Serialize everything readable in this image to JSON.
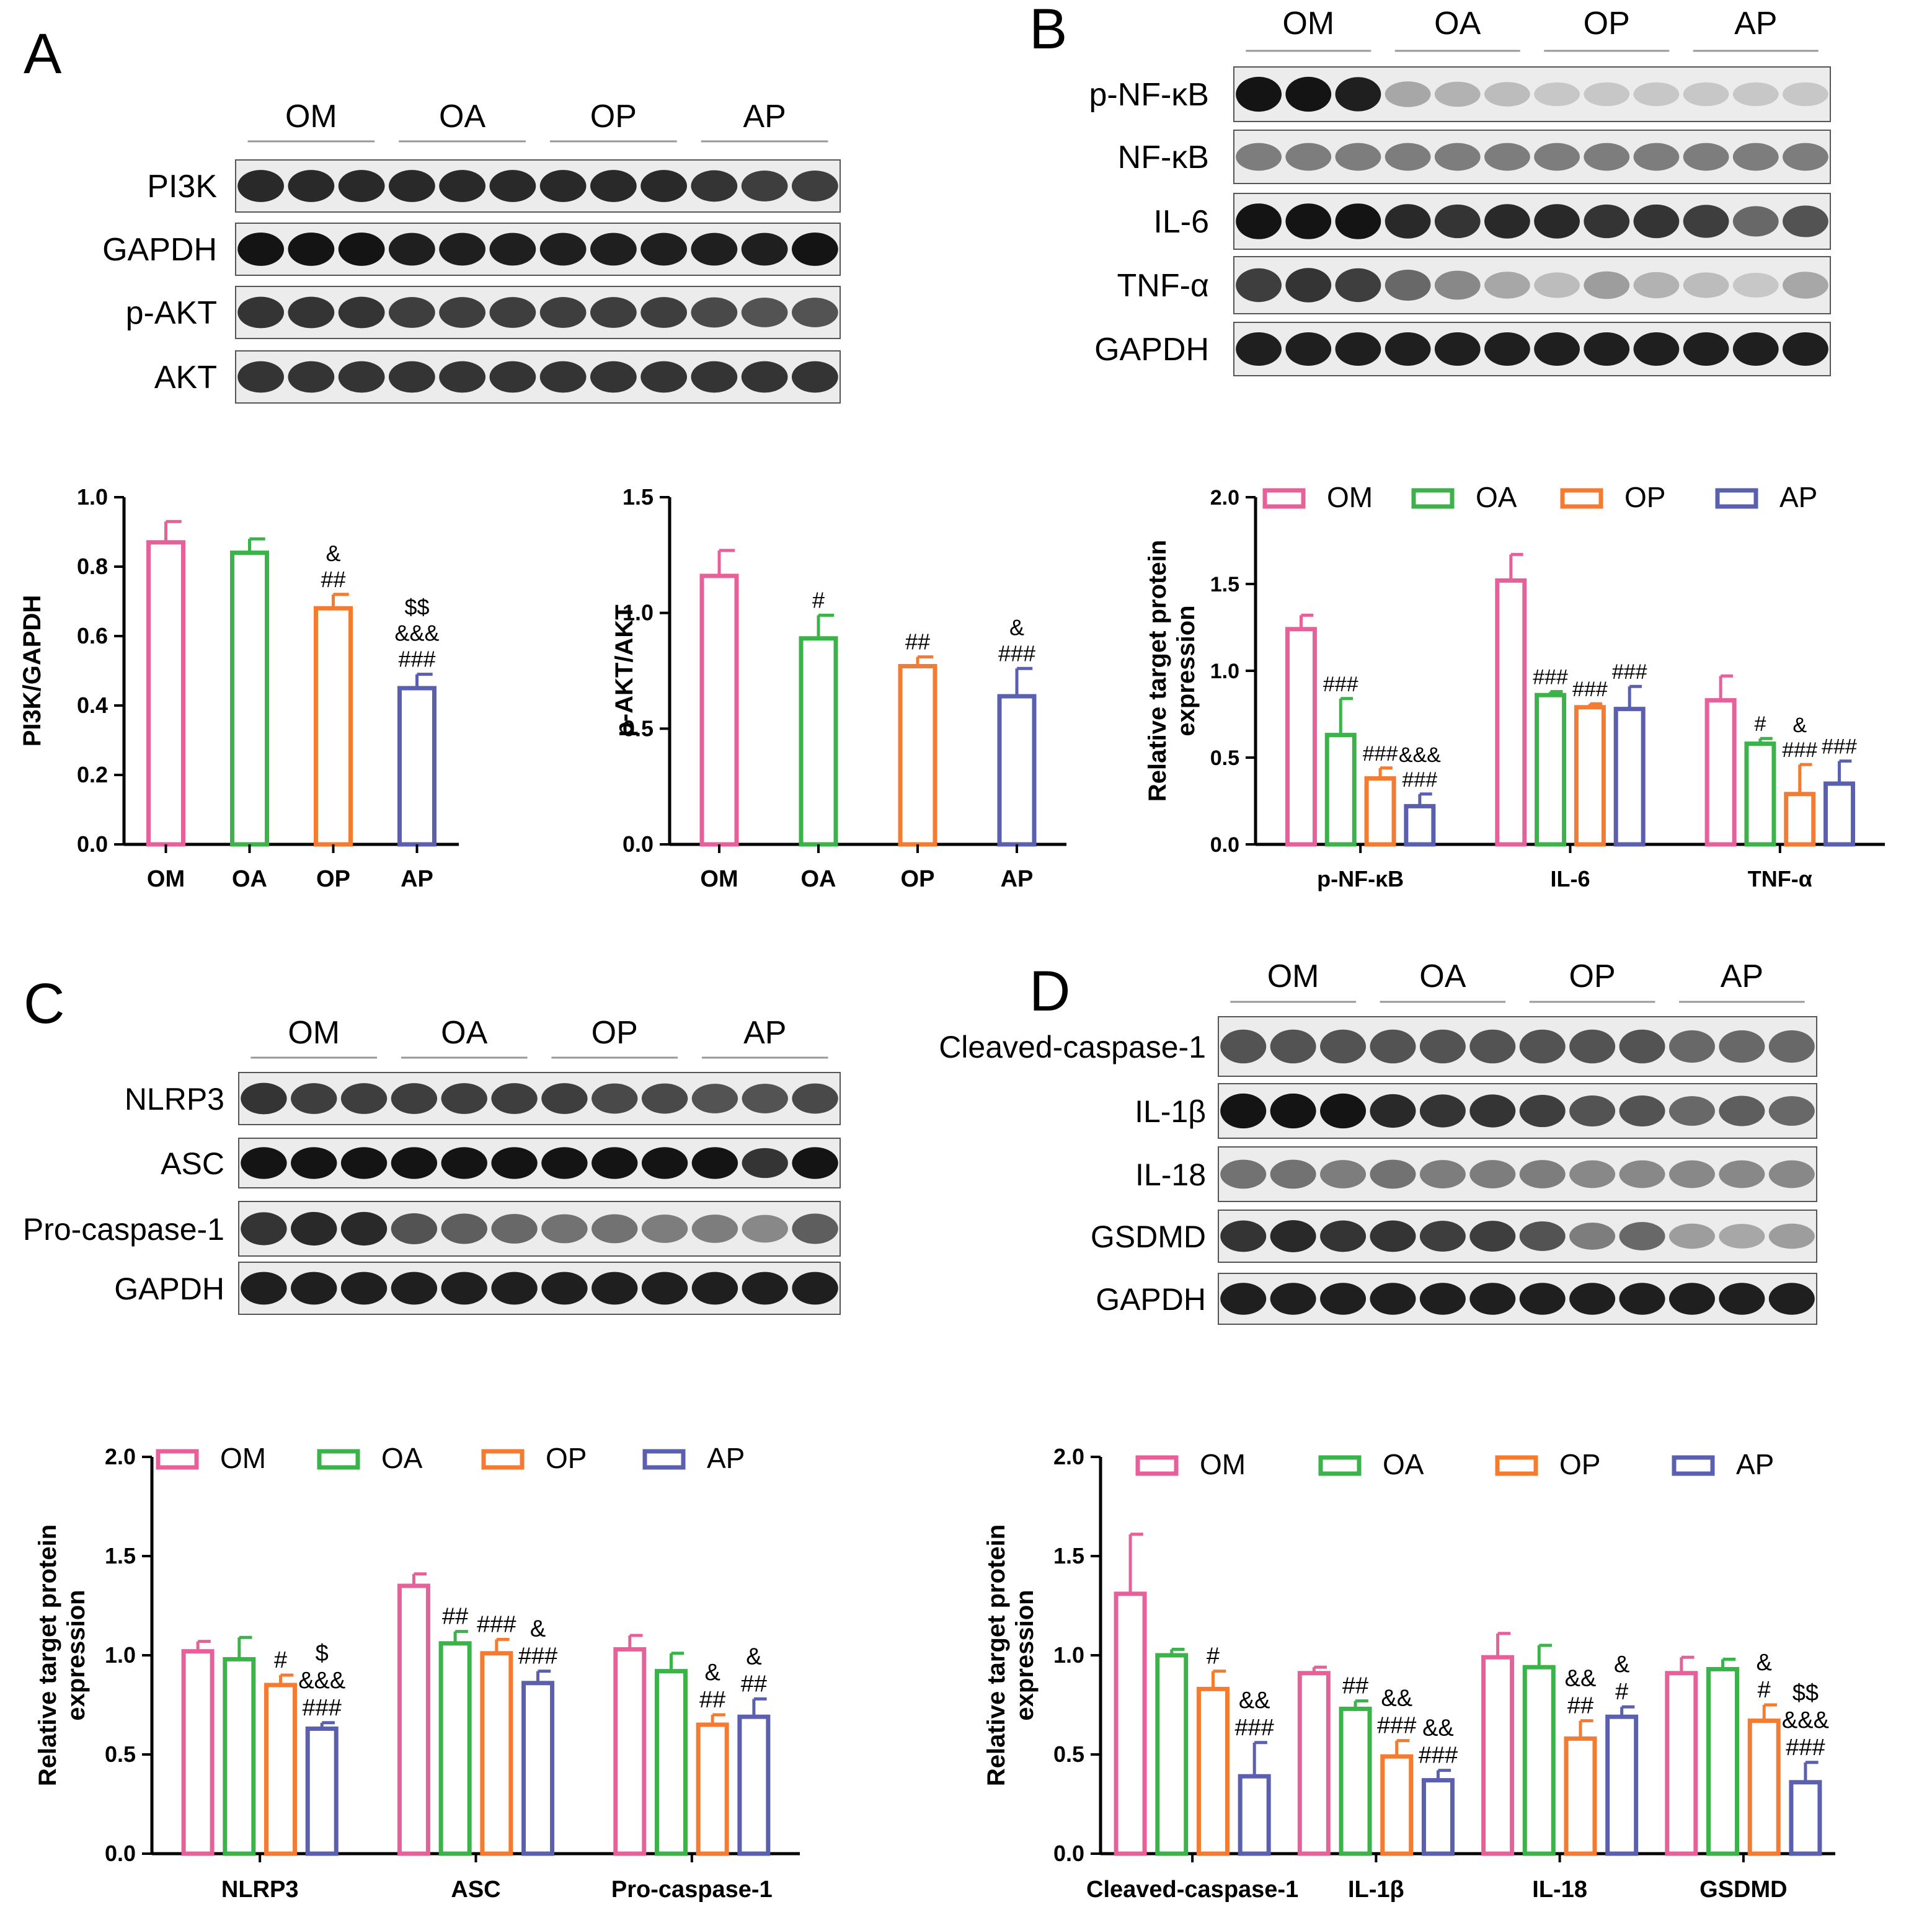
{
  "panel_letters": [
    "A",
    "B",
    "C",
    "D"
  ],
  "blots": [
    {
      "groups": [
        "OM",
        "OA",
        "OP",
        "AP"
      ],
      "rows": [
        "PI3K",
        "GAPDH",
        "p-AKT",
        "AKT"
      ]
    },
    {
      "groups": [
        "OM",
        "OA",
        "OP",
        "AP"
      ],
      "rows": [
        "p-NF-κB",
        "NF-κB",
        "IL-6",
        "TNF-α",
        "GAPDH"
      ]
    },
    {
      "groups": [
        "OM",
        "OA",
        "OP",
        "AP"
      ],
      "rows": [
        "NLRP3",
        "ASC",
        "Pro-caspase-1",
        "GAPDH"
      ]
    },
    {
      "groups": [
        "OM",
        "OA",
        "OP",
        "AP"
      ],
      "rows": [
        "Cleaved-caspase-1",
        "IL-1β",
        "IL-18",
        "GSDMD",
        "GAPDH"
      ]
    }
  ],
  "colors": {
    "OM": "#e8609a",
    "OA": "#3cb34a",
    "OP": "#f47b30",
    "AP": "#5a5fb0",
    "axis": "#000000"
  },
  "chart_data": [
    {
      "type": "bar",
      "categories": [
        "OM",
        "OA",
        "OP",
        "AP"
      ],
      "values": [
        0.87,
        0.84,
        0.68,
        0.45
      ],
      "errors": [
        0.06,
        0.04,
        0.04,
        0.04
      ],
      "annotations": [
        "",
        "",
        "&\n##",
        "$$\n&&&\n###"
      ],
      "ylabel": "PI3K/GAPDH",
      "ylim": [
        0,
        1.0
      ],
      "yticks": [
        "0.0",
        "0.2",
        "0.4",
        "0.6",
        "0.8",
        "1.0"
      ],
      "ytick_values": [
        0,
        0.2,
        0.4,
        0.6,
        0.8,
        1.0
      ]
    },
    {
      "type": "bar",
      "categories": [
        "OM",
        "OA",
        "OP",
        "AP"
      ],
      "values": [
        1.16,
        0.89,
        0.77,
        0.64
      ],
      "errors": [
        0.11,
        0.1,
        0.04,
        0.12
      ],
      "annotations": [
        "",
        "#",
        "##",
        "&\n###"
      ],
      "ylabel": "p-AKT/AKT",
      "ylim": [
        0,
        1.5
      ],
      "yticks": [
        "0.0",
        "0.5",
        "1.0",
        "1.5"
      ],
      "ytick_values": [
        0,
        0.5,
        1.0,
        1.5
      ]
    },
    {
      "type": "bar",
      "categories": [
        "p-NF-κB",
        "IL-6",
        "TNF-α"
      ],
      "series": [
        {
          "name": "OM",
          "values": [
            1.24,
            1.52,
            0.83
          ],
          "errors": [
            0.08,
            0.15,
            0.14
          ],
          "annotations": [
            "",
            "",
            ""
          ]
        },
        {
          "name": "OA",
          "values": [
            0.63,
            0.86,
            0.58
          ],
          "errors": [
            0.21,
            0.02,
            0.03
          ],
          "annotations": [
            "###",
            "###",
            "#"
          ]
        },
        {
          "name": "OP",
          "values": [
            0.38,
            0.79,
            0.29
          ],
          "errors": [
            0.06,
            0.02,
            0.17
          ],
          "annotations": [
            "###",
            "###",
            "&\n###"
          ]
        },
        {
          "name": "AP",
          "values": [
            0.22,
            0.78,
            0.35
          ],
          "errors": [
            0.07,
            0.13,
            0.13
          ],
          "annotations": [
            "&&&\n###",
            "###",
            "###"
          ]
        }
      ],
      "ylabel": "Relative target protein\nexpression",
      "ylim": [
        0,
        2.0
      ],
      "yticks": [
        "0.0",
        "0.5",
        "1.0",
        "1.5",
        "2.0"
      ],
      "ytick_values": [
        0,
        0.5,
        1.0,
        1.5,
        2.0
      ],
      "legend": [
        "OM",
        "OA",
        "OP",
        "AP"
      ]
    },
    {
      "type": "bar",
      "categories": [
        "NLRP3",
        "ASC",
        "Pro-caspase-1"
      ],
      "series": [
        {
          "name": "OM",
          "values": [
            1.02,
            1.35,
            1.03
          ],
          "errors": [
            0.05,
            0.06,
            0.07
          ],
          "annotations": [
            "",
            "",
            ""
          ]
        },
        {
          "name": "OA",
          "values": [
            0.98,
            1.06,
            0.92
          ],
          "errors": [
            0.11,
            0.06,
            0.09
          ],
          "annotations": [
            "",
            "##",
            ""
          ]
        },
        {
          "name": "OP",
          "values": [
            0.85,
            1.01,
            0.65
          ],
          "errors": [
            0.05,
            0.07,
            0.05
          ],
          "annotations": [
            "#",
            "###",
            "&\n##"
          ]
        },
        {
          "name": "AP",
          "values": [
            0.63,
            0.86,
            0.69
          ],
          "errors": [
            0.03,
            0.06,
            0.09
          ],
          "annotations": [
            "$\n&&&\n###",
            "&\n###",
            "&\n##"
          ]
        }
      ],
      "ylabel": "Relative target protein\nexpression",
      "ylim": [
        0,
        2.0
      ],
      "yticks": [
        "0.0",
        "0.5",
        "1.0",
        "1.5",
        "2.0"
      ],
      "ytick_values": [
        0,
        0.5,
        1.0,
        1.5,
        2.0
      ],
      "legend": [
        "OM",
        "OA",
        "OP",
        "AP"
      ]
    },
    {
      "type": "bar",
      "categories": [
        "Cleaved-caspase-1",
        "IL-1β",
        "IL-18",
        "GSDMD"
      ],
      "series": [
        {
          "name": "OM",
          "values": [
            1.31,
            0.91,
            0.99,
            0.91
          ],
          "errors": [
            0.3,
            0.03,
            0.12,
            0.08
          ],
          "annotations": [
            "",
            "",
            "",
            ""
          ]
        },
        {
          "name": "OA",
          "values": [
            1.0,
            0.73,
            0.94,
            0.93
          ],
          "errors": [
            0.03,
            0.04,
            0.11,
            0.05
          ],
          "annotations": [
            "",
            "##",
            "",
            ""
          ]
        },
        {
          "name": "OP",
          "values": [
            0.83,
            0.49,
            0.58,
            0.67
          ],
          "errors": [
            0.09,
            0.08,
            0.09,
            0.08
          ],
          "annotations": [
            "#",
            "&&\n###",
            "&&\n##",
            "&\n#"
          ]
        },
        {
          "name": "AP",
          "values": [
            0.39,
            0.37,
            0.69,
            0.36
          ],
          "errors": [
            0.17,
            0.05,
            0.05,
            0.1
          ],
          "annotations": [
            "&&\n###",
            "&&\n###",
            "&\n#",
            "$$\n&&&\n###"
          ]
        }
      ],
      "ylabel": "Relative target protein\nexpression",
      "ylim": [
        0,
        2.0
      ],
      "yticks": [
        "0.0",
        "0.5",
        "1.0",
        "1.5",
        "2.0"
      ],
      "ytick_values": [
        0,
        0.5,
        1.0,
        1.5,
        2.0
      ],
      "legend": [
        "OM",
        "OA",
        "OP",
        "AP"
      ]
    }
  ]
}
